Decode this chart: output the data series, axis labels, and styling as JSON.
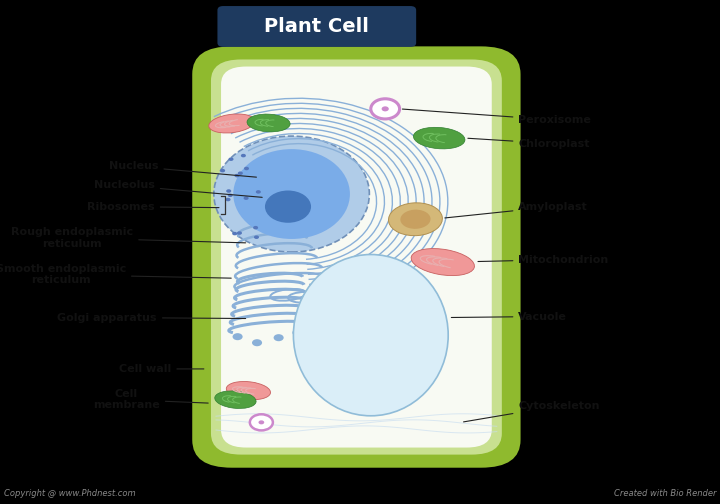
{
  "title": "Plant Cell",
  "title_bg": "#1e3a5f",
  "title_color": "#ffffff",
  "title_fontsize": 14,
  "bg_color": "#000000",
  "cell_wall_color": "#8fba2e",
  "cell_membrane_color": "#c8e090",
  "cell_inner_color": "#f8faf3",
  "nucleus_outer_color": "#b0cce8",
  "nucleus_outer_edge": "#7090b8",
  "nucleus_inner_color": "#7aace8",
  "nucleolus_color": "#4477bb",
  "er_color": "#8ab0d8",
  "golgi_color": "#8ab0d8",
  "vacuole_color": "#daeef8",
  "vacuole_border": "#90bcd8",
  "mitochondria_color": "#f09898",
  "mitochondria_edge": "#c86060",
  "mitochondria_inner": "#e8b0b0",
  "chloroplast_color": "#50a040",
  "chloroplast_edge": "#308030",
  "chloroplast_inner": "#70c060",
  "peroxisome_fill": "#ffffff",
  "peroxisome_border": "#cc88cc",
  "peroxisome_dot": "#cc88cc",
  "amyloplast_color": "#d4b878",
  "amyloplast_edge": "#b09050",
  "amyloplast_inner": "#c8a060",
  "ribosome_color": "#5577bb",
  "cytosk_color": "#c8ddf0",
  "label_fontsize": 8.0,
  "label_color": "#111111",
  "line_color": "#222222",
  "footer_left": "Copyright @ www.Phdnest.com",
  "footer_right": "Created with Bio Render",
  "footer_color": "#888888",
  "footer_fontsize": 6.0
}
